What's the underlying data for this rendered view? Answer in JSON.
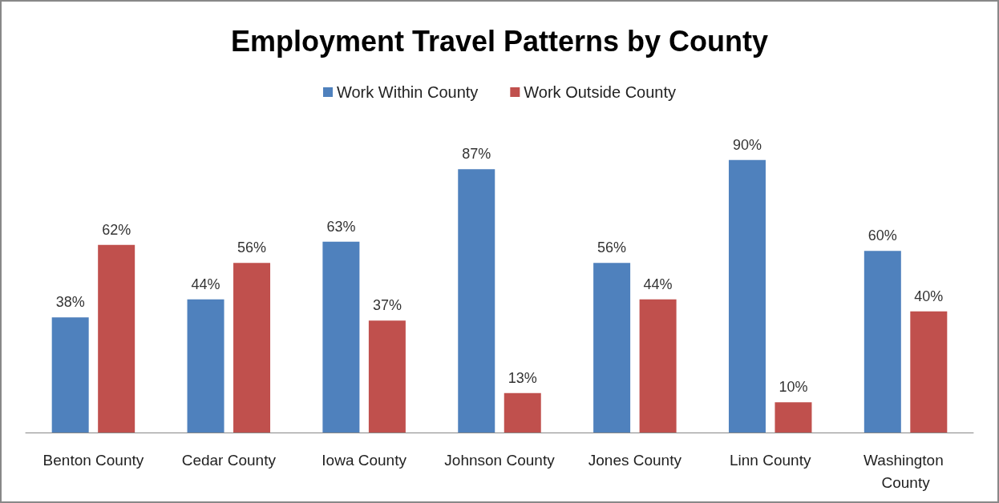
{
  "chart_data": {
    "type": "bar",
    "title": "Employment Travel Patterns by County",
    "categories": [
      "Benton County",
      "Cedar County",
      "Iowa County",
      "Johnson County",
      "Jones County",
      "Linn County",
      "Washington County"
    ],
    "series": [
      {
        "name": "Work Within County",
        "color": "#4f81bd",
        "values": [
          38,
          44,
          63,
          87,
          56,
          90,
          60
        ],
        "value_labels": [
          "38%",
          "44%",
          "63%",
          "87%",
          "56%",
          "90%",
          "60%"
        ]
      },
      {
        "name": "Work Outside County",
        "color": "#c0504d",
        "values": [
          62,
          56,
          37,
          13,
          44,
          10,
          40
        ],
        "value_labels": [
          "62%",
          "56%",
          "37%",
          "13%",
          "44%",
          "10%",
          "40%"
        ]
      }
    ],
    "legend": "top"
  }
}
